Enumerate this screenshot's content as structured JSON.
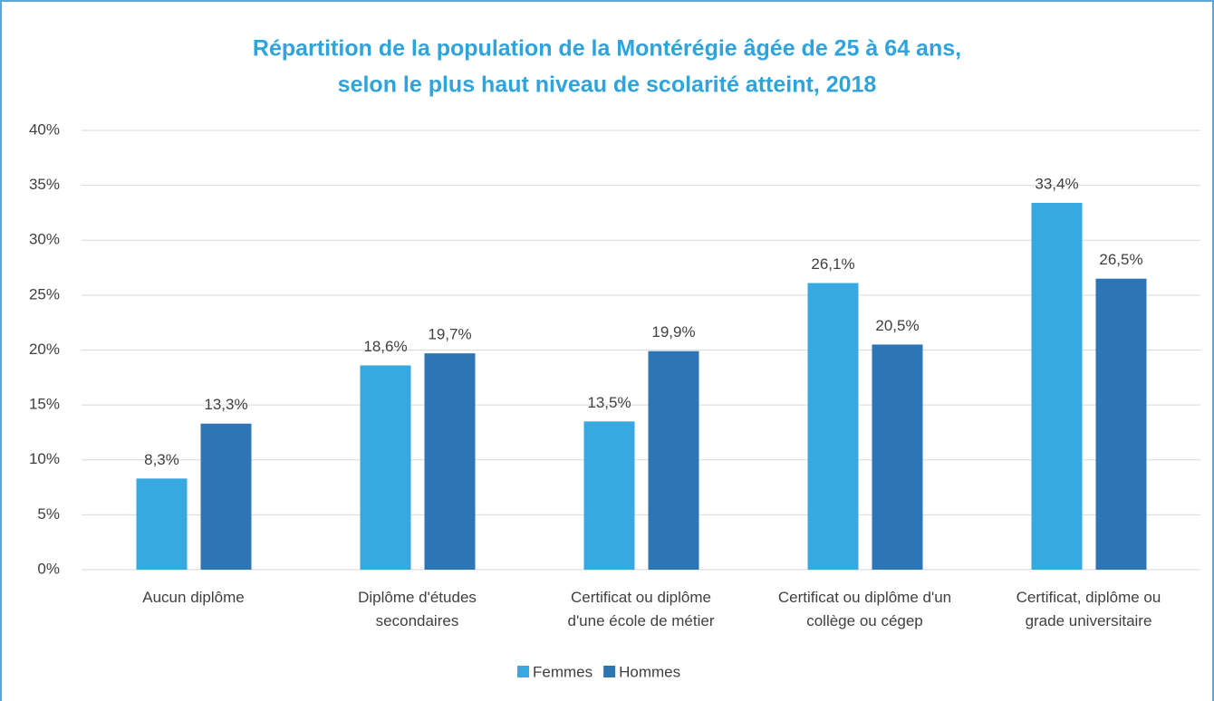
{
  "chart_data": {
    "type": "bar",
    "title": "Répartition de la population de la Montérégie âgée de 25 à 64 ans,",
    "subtitle": "selon le plus haut niveau de scolarité atteint, 2018",
    "categories": [
      "Aucun diplôme",
      "Diplôme d'études secondaires",
      "Certificat ou diplôme d'une école de métier",
      "Certificat ou diplôme d'un collège ou cégep",
      "Certificat, diplôme ou grade universitaire"
    ],
    "series": [
      {
        "name": "Femmes",
        "color": "#38a9e0",
        "values": [
          8.3,
          18.6,
          13.5,
          26.1,
          33.4
        ],
        "value_labels": [
          "8,3%",
          "18,6%",
          "13,5%",
          "26,1%",
          "33,4%"
        ]
      },
      {
        "name": "Hommes",
        "color": "#2e75b6",
        "values": [
          13.3,
          19.7,
          19.9,
          20.5,
          26.5
        ],
        "value_labels": [
          "13,3%",
          "19,7%",
          "19,9%",
          "20,5%",
          "26,5%"
        ]
      }
    ],
    "ylim": [
      0,
      40
    ],
    "yticks": [
      {
        "value": 0,
        "label": "0%"
      },
      {
        "value": 5,
        "label": "5%"
      },
      {
        "value": 10,
        "label": "10%"
      },
      {
        "value": 15,
        "label": "15%"
      },
      {
        "value": 20,
        "label": "20%"
      },
      {
        "value": 25,
        "label": "25%"
      },
      {
        "value": 30,
        "label": "30%"
      },
      {
        "value": 35,
        "label": "35%"
      },
      {
        "value": 40,
        "label": "40%"
      }
    ],
    "grid": true
  }
}
